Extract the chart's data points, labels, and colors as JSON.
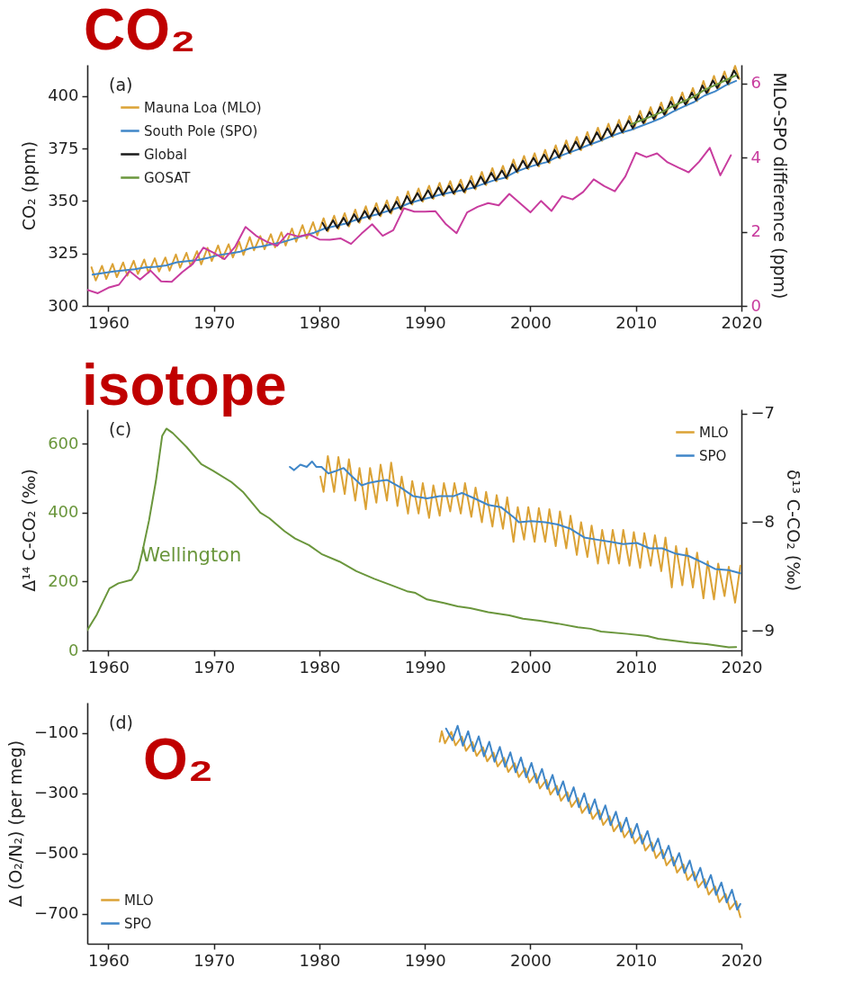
{
  "chart_data": [
    {
      "type": "line",
      "title": "CO₂",
      "ylabel": "CO₂ (ppm)",
      "y2label": "MLO-SPO difference (ppm)",
      "annotations": [
        "(a)"
      ],
      "legend": "top left",
      "xlim": [
        1958,
        2020
      ],
      "xticks": [
        1960,
        1970,
        1980,
        1990,
        2000,
        2010,
        2020
      ],
      "ylim": [
        300,
        415
      ],
      "yticks": [
        300,
        325,
        350,
        375,
        400
      ],
      "y2lim": [
        0,
        6.5
      ],
      "y2ticks": [
        0,
        2,
        4,
        6
      ],
      "series": [
        {
          "name": "Mauna Loa (MLO)",
          "color": "#dba235",
          "x": [
            1958.4,
            1958.8,
            1959.4,
            1959.8,
            1960.4,
            1960.8,
            1961.4,
            1961.8,
            1962.4,
            1962.8,
            1963.4,
            1963.8,
            1964.4,
            1964.8,
            1965.4,
            1965.8,
            1966.4,
            1966.8,
            1967.4,
            1967.8,
            1968.4,
            1968.8,
            1969.4,
            1969.8,
            1970.4,
            1970.8,
            1971.4,
            1971.8,
            1972.4,
            1972.8,
            1973.4,
            1973.8,
            1974.4,
            1974.8,
            1975.4,
            1975.8,
            1976.4,
            1976.8,
            1977.4,
            1977.8,
            1978.4,
            1978.8,
            1979.4,
            1979.8,
            1980.4,
            1980.8,
            1981.4,
            1981.8,
            1982.4,
            1982.8,
            1983.4,
            1983.8,
            1984.4,
            1984.8,
            1985.4,
            1985.8,
            1986.4,
            1986.8,
            1987.4,
            1987.8,
            1988.4,
            1988.8,
            1989.4,
            1989.8,
            1990.4,
            1990.8,
            1991.4,
            1991.8,
            1992.4,
            1992.8,
            1993.4,
            1993.8,
            1994.4,
            1994.8,
            1995.4,
            1995.8,
            1996.4,
            1996.8,
            1997.4,
            1997.8,
            1998.4,
            1998.8,
            1999.4,
            1999.8,
            2000.4,
            2000.8,
            2001.4,
            2001.8,
            2002.4,
            2002.8,
            2003.4,
            2003.8,
            2004.4,
            2004.8,
            2005.4,
            2005.8,
            2006.4,
            2006.8,
            2007.4,
            2007.8,
            2008.4,
            2008.8,
            2009.4,
            2009.8,
            2010.4,
            2010.8,
            2011.4,
            2011.8,
            2012.4,
            2012.8,
            2013.4,
            2013.8,
            2014.4,
            2014.8,
            2015.4,
            2015.8,
            2016.4,
            2016.8,
            2017.4,
            2017.8,
            2018.4,
            2018.8,
            2019.4,
            2019.8
          ],
          "values": [
            318.4,
            312.1,
            319.1,
            312.8,
            320.0,
            313.7,
            320.7,
            314.4,
            321.5,
            315.2,
            322.1,
            315.8,
            322.7,
            316.4,
            323.1,
            316.8,
            324.5,
            318.2,
            325.3,
            319.0,
            326.1,
            319.8,
            327.7,
            321.4,
            328.8,
            322.5,
            329.4,
            323.1,
            330.6,
            324.3,
            332.8,
            326.5,
            333.3,
            327.0,
            334.2,
            327.9,
            335.1,
            328.8,
            336.9,
            330.6,
            338.5,
            332.2,
            339.9,
            333.6,
            341.8,
            335.5,
            343.0,
            336.7,
            344.2,
            337.9,
            345.9,
            339.6,
            347.5,
            341.2,
            349.0,
            342.7,
            350.3,
            344.0,
            352.0,
            345.7,
            354.6,
            348.3,
            356.0,
            349.7,
            357.3,
            351.0,
            358.7,
            352.4,
            359.5,
            353.2,
            360.2,
            353.9,
            361.9,
            355.6,
            363.9,
            357.6,
            365.7,
            359.4,
            366.8,
            360.5,
            369.8,
            363.5,
            371.5,
            365.2,
            372.8,
            366.5,
            374.4,
            368.1,
            376.6,
            370.3,
            378.9,
            372.6,
            380.6,
            374.3,
            382.9,
            376.6,
            385.0,
            378.7,
            386.9,
            380.6,
            388.7,
            382.4,
            390.5,
            384.2,
            393.0,
            386.7,
            394.8,
            388.5,
            397.0,
            390.7,
            399.6,
            393.3,
            401.8,
            395.5,
            403.9,
            397.6,
            407.3,
            401.0,
            409.7,
            403.4,
            411.8,
            405.5,
            414.5,
            408.2
          ]
        },
        {
          "name": "South Pole (SPO)",
          "color": "#3f86c8",
          "x": [
            1958.5,
            1959.5,
            1960.5,
            1961.5,
            1962.5,
            1963.5,
            1964.5,
            1965.5,
            1966.5,
            1967.5,
            1968.5,
            1969.5,
            1970.5,
            1971.5,
            1972.5,
            1973.5,
            1974.5,
            1975.5,
            1976.5,
            1977.5,
            1978.5,
            1979.5,
            1980.5,
            1981.5,
            1982.5,
            1983.5,
            1984.5,
            1985.5,
            1986.5,
            1987.5,
            1988.5,
            1989.5,
            1990.5,
            1991.5,
            1992.5,
            1993.5,
            1994.5,
            1995.5,
            1996.5,
            1997.5,
            1998.5,
            1999.5,
            2000.5,
            2001.5,
            2002.5,
            2003.5,
            2004.5,
            2005.5,
            2006.5,
            2007.5,
            2008.5,
            2009.5,
            2010.5,
            2011.5,
            2012.5,
            2013.5,
            2014.5,
            2015.5,
            2016.5,
            2017.5,
            2018.5,
            2019.5
          ],
          "values": [
            314.9,
            315.7,
            316.4,
            317.0,
            317.5,
            318.3,
            318.7,
            319.3,
            320.8,
            321.3,
            321.9,
            323.0,
            324.3,
            325.0,
            325.9,
            327.6,
            328.3,
            329.4,
            330.4,
            331.9,
            333.5,
            334.9,
            336.9,
            338.1,
            339.3,
            341.1,
            342.5,
            343.7,
            345.3,
            346.9,
            348.9,
            350.4,
            351.7,
            353.1,
            354.2,
            355.1,
            356.3,
            358.1,
            359.8,
            361.0,
            363.7,
            365.6,
            367.2,
            368.5,
            370.9,
            372.8,
            374.6,
            376.7,
            378.5,
            380.6,
            382.5,
            383.9,
            385.8,
            387.7,
            389.8,
            392.6,
            395.0,
            397.2,
            400.3,
            402.3,
            405.2,
            407.3
          ]
        },
        {
          "name": "Global",
          "color": "#1a1a1a",
          "x": [
            1980.3,
            1980.7,
            1981.3,
            1981.7,
            1982.3,
            1982.7,
            1983.3,
            1983.7,
            1984.3,
            1984.7,
            1985.3,
            1985.7,
            1986.3,
            1986.7,
            1987.3,
            1987.7,
            1988.3,
            1988.7,
            1989.3,
            1989.7,
            1990.3,
            1990.7,
            1991.3,
            1991.7,
            1992.3,
            1992.7,
            1993.3,
            1993.7,
            1994.3,
            1994.7,
            1995.3,
            1995.7,
            1996.3,
            1996.7,
            1997.3,
            1997.7,
            1998.3,
            1998.7,
            1999.3,
            1999.7,
            2000.3,
            2000.7,
            2001.3,
            2001.7,
            2002.3,
            2002.7,
            2003.3,
            2003.7,
            2004.3,
            2004.7,
            2005.3,
            2005.7,
            2006.3,
            2006.7,
            2007.3,
            2007.7,
            2008.3,
            2008.7,
            2009.3,
            2009.7,
            2010.3,
            2010.7,
            2011.3,
            2011.7,
            2012.3,
            2012.7,
            2013.3,
            2013.7,
            2014.3,
            2014.7,
            2015.3,
            2015.7,
            2016.3,
            2016.7,
            2017.3,
            2017.7,
            2018.3,
            2018.7,
            2019.3,
            2019.7
          ],
          "values": [
            339.6,
            336.0,
            340.8,
            337.2,
            342.0,
            338.4,
            343.7,
            340.1,
            345.3,
            341.7,
            346.8,
            343.2,
            348.1,
            344.5,
            349.8,
            346.2,
            352.4,
            348.8,
            353.8,
            350.2,
            355.1,
            351.5,
            356.5,
            352.9,
            357.3,
            353.7,
            358.0,
            354.4,
            359.7,
            356.1,
            361.7,
            358.1,
            363.5,
            359.9,
            364.6,
            361.0,
            367.6,
            364.0,
            369.3,
            365.7,
            370.6,
            367.0,
            372.2,
            368.6,
            374.4,
            370.8,
            376.7,
            373.1,
            378.4,
            374.8,
            380.7,
            377.1,
            382.8,
            379.2,
            384.7,
            381.1,
            386.5,
            382.9,
            388.3,
            384.7,
            390.8,
            387.2,
            392.6,
            389.0,
            394.8,
            391.2,
            397.4,
            393.8,
            399.6,
            396.0,
            401.7,
            398.1,
            405.1,
            401.5,
            407.5,
            403.9,
            409.6,
            406.0,
            412.3,
            408.7
          ]
        },
        {
          "name": "GOSAT",
          "color": "#6a963c",
          "x": [
            2009.5,
            2010.5,
            2011.5,
            2012.5,
            2013.5,
            2014.5,
            2015.5,
            2016.5,
            2017.5,
            2018.5,
            2019.5
          ],
          "values": [
            386.5,
            388.5,
            390.5,
            392.5,
            395.3,
            397.5,
            399.8,
            403.0,
            405.3,
            407.6,
            410.0
          ]
        },
        {
          "color": "#c83c9e",
          "axis": "y2",
          "x": [
            1958,
            1959,
            1960,
            1961,
            1962,
            1963,
            1964,
            1965,
            1966,
            1967,
            1968,
            1969,
            1970,
            1971,
            1972,
            1973,
            1974,
            1975,
            1976,
            1977,
            1978,
            1979,
            1980,
            1981,
            1982,
            1983,
            1984,
            1985,
            1986,
            1987,
            1988,
            1989,
            1990,
            1991,
            1992,
            1993,
            1994,
            1995,
            1996,
            1997,
            1998,
            1999,
            2000,
            2001,
            2002,
            2003,
            2004,
            2005,
            2006,
            2007,
            2008,
            2009,
            2010,
            2011,
            2012,
            2013,
            2014,
            2015,
            2016,
            2017,
            2018,
            2019
          ],
          "values": [
            0.43,
            0.34,
            0.49,
            0.57,
            0.94,
            0.71,
            0.95,
            0.66,
            0.65,
            0.91,
            1.13,
            1.57,
            1.43,
            1.26,
            1.59,
            2.13,
            1.89,
            1.73,
            1.62,
            1.95,
            1.87,
            1.93,
            1.79,
            1.78,
            1.82,
            1.67,
            1.95,
            2.2,
            1.89,
            2.04,
            2.63,
            2.54,
            2.54,
            2.55,
            2.2,
            1.96,
            2.52,
            2.67,
            2.77,
            2.71,
            3.02,
            2.77,
            2.52,
            2.83,
            2.56,
            2.96,
            2.87,
            3.07,
            3.41,
            3.23,
            3.09,
            3.49,
            4.13,
            4.01,
            4.11,
            3.87,
            3.73,
            3.6,
            3.89,
            4.26,
            3.52,
            4.06
          ]
        }
      ]
    },
    {
      "type": "line",
      "title": "isotope",
      "ylabel": "Δ¹⁴ C-CO₂ (‰)",
      "y2label": "δ¹³ C-CO₂ (‰)",
      "annotations": [
        "(c)",
        {
          "text": "Wellington",
          "x": 1962.8,
          "y": 233
        }
      ],
      "legend": "top right",
      "xlim": [
        1958,
        2020
      ],
      "xticks": [
        1960,
        1970,
        1980,
        1990,
        2000,
        2010,
        2020
      ],
      "ylim": [
        0,
        700
      ],
      "yticks": [
        0,
        200,
        400,
        600
      ],
      "y2lim": [
        -9.18,
        -6.96
      ],
      "y2ticks": [
        {
          "value": -7,
          "label": "−7"
        },
        {
          "value": -8,
          "label": "−8"
        },
        {
          "value": -9,
          "label": "−9"
        }
      ],
      "series": [
        {
          "color": "#6a963c",
          "x": [
            1958.0,
            1958.9,
            1960.1,
            1960.95,
            1962.2,
            1962.8,
            1963.2,
            1963.85,
            1964.5,
            1965.1,
            1965.5,
            1966.1,
            1967.4,
            1968.8,
            1969.9,
            1971.7,
            1972.8,
            1974.4,
            1975.25,
            1976.7,
            1977.7,
            1979.0,
            1980.2,
            1981.9,
            1983.5,
            1985.2,
            1986.85,
            1988.3,
            1989.1,
            1990.2,
            1991.8,
            1993.1,
            1994.3,
            1996.0,
            1998.0,
            1999.3,
            2000.9,
            2002.6,
            2004.5,
            2005.7,
            2006.7,
            2009.2,
            2011.1,
            2012.1,
            2015.0,
            2016.7,
            2018.8,
            2019.5
          ],
          "values": [
            59,
            104,
            180,
            195,
            205,
            233,
            283,
            377,
            491,
            623,
            644,
            631,
            591,
            541,
            522,
            488,
            459,
            400,
            384,
            346,
            325,
            306,
            280,
            258,
            230,
            208,
            189,
            172,
            167,
            148,
            138,
            128,
            123,
            111,
            102,
            92,
            86,
            78,
            67,
            63,
            55,
            48,
            42,
            34,
            23,
            18,
            9,
            10
          ]
        },
        {
          "name": "MLO",
          "color": "#dba235",
          "axis": "y2",
          "x": [
            1980.1,
            1980.4,
            1980.8,
            1981.4,
            1981.8,
            1982.4,
            1982.8,
            1983.4,
            1983.8,
            1984.4,
            1984.8,
            1985.4,
            1985.8,
            1986.4,
            1986.8,
            1987.4,
            1987.8,
            1988.4,
            1988.8,
            1989.4,
            1989.8,
            1990.4,
            1990.8,
            1991.4,
            1991.8,
            1992.4,
            1992.8,
            1993.4,
            1993.8,
            1994.4,
            1994.8,
            1995.4,
            1995.8,
            1996.4,
            1996.8,
            1997.4,
            1997.8,
            1998.4,
            1998.8,
            1999.4,
            1999.8,
            2000.4,
            2000.8,
            2001.4,
            2001.8,
            2002.4,
            2002.8,
            2003.4,
            2003.8,
            2004.4,
            2004.8,
            2005.4,
            2005.8,
            2006.4,
            2006.8,
            2007.4,
            2007.8,
            2008.4,
            2008.8,
            2009.4,
            2009.8,
            2010.4,
            2010.8,
            2011.4,
            2011.8,
            2012.4,
            2012.8,
            2013.4,
            2013.8,
            2014.4,
            2014.8,
            2015.4,
            2015.8,
            2016.4,
            2016.8,
            2017.4,
            2017.8,
            2018.4,
            2018.8,
            2019.4,
            2019.9
          ],
          "values": [
            -7.58,
            -7.72,
            -7.39,
            -7.72,
            -7.4,
            -7.74,
            -7.42,
            -7.8,
            -7.5,
            -7.88,
            -7.5,
            -7.82,
            -7.47,
            -7.8,
            -7.45,
            -7.85,
            -7.58,
            -7.92,
            -7.62,
            -7.92,
            -7.64,
            -7.96,
            -7.66,
            -7.94,
            -7.64,
            -7.9,
            -7.64,
            -7.92,
            -7.64,
            -7.95,
            -7.68,
            -8.0,
            -7.72,
            -8.04,
            -7.75,
            -8.06,
            -7.77,
            -8.18,
            -7.86,
            -8.16,
            -7.86,
            -8.18,
            -7.87,
            -8.18,
            -7.88,
            -8.22,
            -7.9,
            -8.24,
            -7.94,
            -8.3,
            -8.0,
            -8.32,
            -8.03,
            -8.38,
            -8.07,
            -8.38,
            -8.07,
            -8.38,
            -8.07,
            -8.4,
            -8.09,
            -8.42,
            -8.1,
            -8.4,
            -8.12,
            -8.45,
            -8.14,
            -8.6,
            -8.22,
            -8.58,
            -8.24,
            -8.6,
            -8.28,
            -8.7,
            -8.36,
            -8.71,
            -8.38,
            -8.68,
            -8.41,
            -8.74,
            -8.4
          ]
        },
        {
          "name": "SPO",
          "color": "#3f86c8",
          "axis": "y2",
          "x": [
            1977.2,
            1977.6,
            1978.2,
            1978.8,
            1979.3,
            1979.7,
            1980.2,
            1980.85,
            1981.5,
            1982.3,
            1982.9,
            1984.0,
            1984.6,
            1985.6,
            1986.4,
            1987.7,
            1988.9,
            1990.2,
            1991.4,
            1992.7,
            1993.5,
            1994.7,
            1996.0,
            1997.2,
            1998.5,
            1998.9,
            2000.1,
            2001.4,
            2002.6,
            2003.8,
            2005.1,
            2006.3,
            2007.6,
            2008.8,
            2010.1,
            2011.3,
            2012.5,
            2013.8,
            2015.0,
            2016.3,
            2017.5,
            2018.8,
            2019.9
          ],
          "values": [
            -7.49,
            -7.52,
            -7.47,
            -7.49,
            -7.44,
            -7.49,
            -7.49,
            -7.55,
            -7.53,
            -7.5,
            -7.56,
            -7.66,
            -7.64,
            -7.62,
            -7.61,
            -7.68,
            -7.76,
            -7.78,
            -7.76,
            -7.76,
            -7.73,
            -7.78,
            -7.84,
            -7.86,
            -7.96,
            -8.0,
            -7.99,
            -8.0,
            -8.02,
            -8.06,
            -8.14,
            -8.16,
            -8.18,
            -8.2,
            -8.19,
            -8.24,
            -8.24,
            -8.29,
            -8.31,
            -8.37,
            -8.43,
            -8.44,
            -8.47
          ]
        }
      ]
    },
    {
      "type": "line",
      "title": "O₂",
      "ylabel": "Δ (O₂/N₂) (per meg)",
      "annotations": [
        "(d)"
      ],
      "legend": "bottom left",
      "xlim": [
        1958,
        2020
      ],
      "xticks": [
        1960,
        1970,
        1980,
        1990,
        2000,
        2010,
        2020
      ],
      "ylim": [
        -800,
        0
      ],
      "yticks": [
        {
          "value": -100,
          "label": "−100"
        },
        {
          "value": -300,
          "label": "−300"
        },
        {
          "value": -500,
          "label": "−500"
        },
        {
          "value": -700,
          "label": "−700"
        }
      ],
      "series": [
        {
          "name": "MLO",
          "color": "#dba235",
          "x": [
            1991.4,
            1991.6,
            1991.9,
            1992.5,
            1992.9,
            1993.5,
            1993.9,
            1994.5,
            1994.9,
            1995.5,
            1995.9,
            1996.5,
            1996.9,
            1997.5,
            1997.9,
            1998.5,
            1998.9,
            1999.5,
            1999.9,
            2000.5,
            2000.9,
            2001.5,
            2001.9,
            2002.5,
            2002.9,
            2003.5,
            2003.9,
            2004.5,
            2004.9,
            2005.5,
            2005.9,
            2006.5,
            2006.9,
            2007.5,
            2007.9,
            2008.5,
            2008.9,
            2009.5,
            2009.9,
            2010.5,
            2010.9,
            2011.5,
            2011.9,
            2012.5,
            2012.9,
            2013.5,
            2013.9,
            2014.5,
            2014.9,
            2015.5,
            2015.9,
            2016.5,
            2016.9,
            2017.5,
            2017.9,
            2018.5,
            2018.9,
            2019.5,
            2019.9
          ],
          "values": [
            -130,
            -95,
            -135,
            -97,
            -142,
            -113,
            -160,
            -131,
            -177,
            -148,
            -195,
            -166,
            -212,
            -183,
            -230,
            -201,
            -247,
            -218,
            -265,
            -236,
            -285,
            -256,
            -305,
            -276,
            -326,
            -297,
            -346,
            -317,
            -366,
            -337,
            -386,
            -357,
            -406,
            -377,
            -427,
            -398,
            -447,
            -418,
            -467,
            -440,
            -491,
            -464,
            -516,
            -489,
            -540,
            -513,
            -564,
            -537,
            -589,
            -562,
            -613,
            -586,
            -637,
            -610,
            -662,
            -635,
            -686,
            -659,
            -712
          ]
        },
        {
          "name": "SPO",
          "color": "#3f86c8",
          "x": [
            1992.0,
            1992.6,
            1993.1,
            1993.6,
            1994.1,
            1994.6,
            1995.1,
            1995.6,
            1996.1,
            1996.6,
            1997.1,
            1997.6,
            1998.1,
            1998.6,
            1999.1,
            1999.6,
            2000.1,
            2000.6,
            2001.1,
            2001.6,
            2002.1,
            2002.6,
            2003.1,
            2003.6,
            2004.1,
            2004.6,
            2005.1,
            2005.6,
            2006.1,
            2006.6,
            2007.1,
            2007.6,
            2008.1,
            2008.6,
            2009.1,
            2009.6,
            2010.1,
            2010.6,
            2011.1,
            2011.6,
            2012.1,
            2012.6,
            2013.1,
            2013.6,
            2014.1,
            2014.6,
            2015.1,
            2015.6,
            2016.1,
            2016.6,
            2017.1,
            2017.6,
            2018.1,
            2018.6,
            2019.1,
            2019.6,
            2019.9
          ],
          "values": [
            -86,
            -125,
            -77,
            -143,
            -95,
            -161,
            -112,
            -178,
            -130,
            -196,
            -147,
            -213,
            -165,
            -231,
            -182,
            -248,
            -200,
            -266,
            -220,
            -286,
            -240,
            -306,
            -261,
            -327,
            -281,
            -347,
            -301,
            -367,
            -321,
            -387,
            -341,
            -407,
            -362,
            -428,
            -382,
            -448,
            -402,
            -468,
            -426,
            -492,
            -451,
            -517,
            -475,
            -541,
            -499,
            -565,
            -524,
            -590,
            -548,
            -614,
            -572,
            -638,
            -597,
            -663,
            -621,
            -687,
            -668
          ]
        }
      ]
    }
  ]
}
